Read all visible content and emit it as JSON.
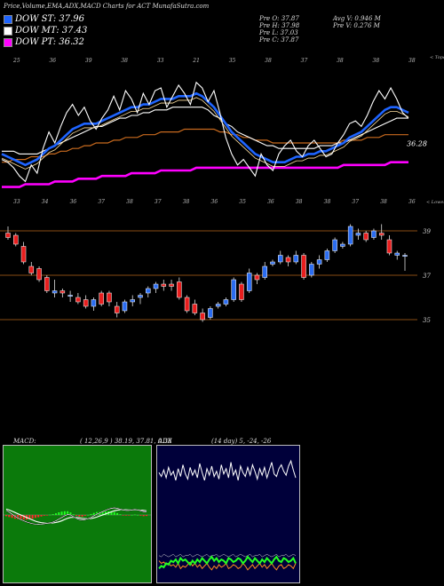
{
  "header": {
    "title": "Price,Volume,EMA,ADX,MACD Charts for ACT MunafaSutra.com"
  },
  "legend": [
    {
      "label": "DOW ST: 37.96",
      "color": "#1e64ff"
    },
    {
      "label": "DOW MT: 37.43",
      "color": "#ffffff"
    },
    {
      "label": "DOW PT: 36.32",
      "color": "#ff00ff"
    }
  ],
  "stats": {
    "open": "Pre  O: 37.87",
    "high": "Pre  H: 37.98",
    "low": "Pre  L: 37.03",
    "close": "Pre  C: 37.87",
    "avg_vol": "Avg V: 0.946  M",
    "pre_vol": "Pre  V: 0.276  M"
  },
  "colors": {
    "up": "#2b6cf0",
    "down": "#e81e1e",
    "ema_st": "#1e64ff",
    "ema_pt": "#ff00ff",
    "price_line": "#ffffff",
    "sr_line": "#b5651d"
  },
  "chart_data": [
    {
      "type": "line",
      "name": "ema-panel",
      "top_tick_labels": [
        "25",
        "36",
        "39",
        "38",
        "33",
        "21",
        "35",
        "38",
        "37",
        "38",
        "38",
        "38"
      ],
      "bottom_tick_labels": [
        "33",
        "34",
        "36",
        "37",
        "38",
        "37",
        "38",
        "36",
        "35",
        "36",
        "38",
        "38",
        "37",
        "38",
        "36"
      ],
      "corner_label_top": "< Topo",
      "corner_label_bottom": "< Lowes",
      "last_value_label": "36.28",
      "price": [
        36.4,
        36.3,
        36.1,
        35.8,
        35.6,
        36.2,
        35.9,
        36.8,
        37.4,
        37.0,
        37.6,
        38.1,
        38.4,
        38.0,
        38.3,
        37.8,
        37.5,
        37.9,
        38.2,
        38.7,
        38.2,
        38.9,
        38.6,
        38.1,
        38.8,
        38.4,
        38.9,
        39.0,
        38.3,
        38.7,
        39.1,
        38.8,
        38.4,
        39.2,
        39.0,
        38.5,
        38.9,
        38.1,
        37.2,
        36.6,
        36.2,
        36.4,
        36.1,
        35.8,
        36.6,
        36.2,
        36.0,
        36.6,
        36.9,
        37.1,
        36.7,
        36.5,
        36.9,
        37.1,
        36.8,
        36.5,
        36.6,
        37.0,
        37.3,
        37.7,
        37.8,
        37.6,
        38.0,
        38.5,
        38.9,
        38.6,
        39.0,
        38.6,
        38.1,
        37.9
      ],
      "ema_st": [
        36.6,
        36.5,
        36.4,
        36.3,
        36.2,
        36.3,
        36.4,
        36.6,
        36.8,
        36.9,
        37.1,
        37.3,
        37.5,
        37.6,
        37.7,
        37.7,
        37.7,
        37.8,
        37.9,
        38.0,
        38.1,
        38.2,
        38.3,
        38.3,
        38.4,
        38.4,
        38.5,
        38.6,
        38.6,
        38.6,
        38.7,
        38.7,
        38.7,
        38.8,
        38.7,
        38.5,
        38.3,
        38.0,
        37.7,
        37.4,
        37.2,
        37.0,
        36.8,
        36.6,
        36.5,
        36.4,
        36.3,
        36.3,
        36.3,
        36.4,
        36.5,
        36.5,
        36.6,
        36.6,
        36.7,
        36.7,
        36.8,
        36.9,
        37.0,
        37.2,
        37.3,
        37.4,
        37.6,
        37.8,
        38.0,
        38.2,
        38.3,
        38.3,
        38.2,
        38.1
      ],
      "ema_mt": [
        36.7,
        36.7,
        36.7,
        36.6,
        36.6,
        36.6,
        36.6,
        36.7,
        36.8,
        36.9,
        37.0,
        37.1,
        37.2,
        37.3,
        37.4,
        37.5,
        37.6,
        37.6,
        37.7,
        37.8,
        37.9,
        37.9,
        38.0,
        38.0,
        38.1,
        38.1,
        38.2,
        38.2,
        38.2,
        38.3,
        38.3,
        38.3,
        38.3,
        38.3,
        38.3,
        38.2,
        38.0,
        37.9,
        37.7,
        37.6,
        37.4,
        37.3,
        37.2,
        37.1,
        37.0,
        36.9,
        36.9,
        36.8,
        36.8,
        36.8,
        36.8,
        36.8,
        36.8,
        36.8,
        36.9,
        36.9,
        36.9,
        37.0,
        37.0,
        37.1,
        37.2,
        37.3,
        37.4,
        37.5,
        37.6,
        37.7,
        37.8,
        37.9,
        37.9,
        37.9
      ],
      "ema_lt": [
        36.3,
        36.3,
        36.4,
        36.4,
        36.4,
        36.5,
        36.5,
        36.5,
        36.6,
        36.6,
        36.7,
        36.7,
        36.8,
        36.8,
        36.9,
        36.9,
        37.0,
        37.0,
        37.0,
        37.1,
        37.1,
        37.2,
        37.2,
        37.2,
        37.3,
        37.3,
        37.3,
        37.4,
        37.4,
        37.4,
        37.4,
        37.5,
        37.5,
        37.5,
        37.5,
        37.5,
        37.5,
        37.4,
        37.4,
        37.3,
        37.3,
        37.2,
        37.2,
        37.1,
        37.1,
        37.1,
        37.0,
        37.0,
        37.0,
        37.0,
        37.0,
        37.0,
        37.0,
        37.0,
        37.0,
        37.0,
        37.0,
        37.0,
        37.1,
        37.1,
        37.1,
        37.1,
        37.2,
        37.2,
        37.2,
        37.3,
        37.3,
        37.3,
        37.3,
        37.3
      ],
      "ema_pt": [
        35.4,
        35.4,
        35.4,
        35.4,
        35.5,
        35.5,
        35.5,
        35.5,
        35.5,
        35.6,
        35.6,
        35.6,
        35.6,
        35.7,
        35.7,
        35.7,
        35.7,
        35.8,
        35.8,
        35.8,
        35.8,
        35.8,
        35.9,
        35.9,
        35.9,
        35.9,
        35.9,
        36.0,
        36.0,
        36.0,
        36.0,
        36.0,
        36.0,
        36.1,
        36.1,
        36.1,
        36.1,
        36.1,
        36.1,
        36.1,
        36.1,
        36.1,
        36.1,
        36.1,
        36.1,
        36.1,
        36.1,
        36.1,
        36.1,
        36.1,
        36.1,
        36.1,
        36.1,
        36.1,
        36.1,
        36.1,
        36.1,
        36.1,
        36.2,
        36.2,
        36.2,
        36.2,
        36.2,
        36.2,
        36.2,
        36.2,
        36.3,
        36.3,
        36.3,
        36.3
      ],
      "ylim": [
        35,
        40
      ]
    },
    {
      "type": "candlestick",
      "name": "price-panel",
      "y_tick_labels": [
        "39",
        "37",
        "35"
      ],
      "support_resistance_levels": [
        39,
        37,
        35
      ],
      "candles": [
        {
          "o": 38.9,
          "h": 39.2,
          "l": 38.6,
          "c": 38.7
        },
        {
          "o": 38.8,
          "h": 38.9,
          "l": 38.3,
          "c": 38.4
        },
        {
          "o": 38.3,
          "h": 38.5,
          "l": 37.5,
          "c": 37.6
        },
        {
          "o": 37.4,
          "h": 37.6,
          "l": 37.0,
          "c": 37.1
        },
        {
          "o": 37.3,
          "h": 37.4,
          "l": 36.7,
          "c": 36.8
        },
        {
          "o": 36.9,
          "h": 37.0,
          "l": 36.2,
          "c": 36.3
        },
        {
          "o": 36.2,
          "h": 36.8,
          "l": 36.0,
          "c": 36.3
        },
        {
          "o": 36.3,
          "h": 36.4,
          "l": 36.0,
          "c": 36.2
        },
        {
          "o": 36.1,
          "h": 36.3,
          "l": 35.8,
          "c": 36.1
        },
        {
          "o": 36.0,
          "h": 36.2,
          "l": 35.7,
          "c": 35.8
        },
        {
          "o": 35.9,
          "h": 36.1,
          "l": 35.5,
          "c": 35.6
        },
        {
          "o": 35.6,
          "h": 36.0,
          "l": 35.4,
          "c": 35.9
        },
        {
          "o": 36.2,
          "h": 36.3,
          "l": 35.6,
          "c": 35.7
        },
        {
          "o": 36.2,
          "h": 36.3,
          "l": 35.6,
          "c": 35.8
        },
        {
          "o": 35.6,
          "h": 35.8,
          "l": 35.1,
          "c": 35.3
        },
        {
          "o": 35.4,
          "h": 35.9,
          "l": 35.3,
          "c": 35.8
        },
        {
          "o": 35.8,
          "h": 36.1,
          "l": 35.6,
          "c": 35.9
        },
        {
          "o": 36.0,
          "h": 36.2,
          "l": 35.7,
          "c": 36.1
        },
        {
          "o": 36.2,
          "h": 36.5,
          "l": 36.0,
          "c": 36.4
        },
        {
          "o": 36.4,
          "h": 36.7,
          "l": 36.2,
          "c": 36.6
        },
        {
          "o": 36.6,
          "h": 36.8,
          "l": 36.3,
          "c": 36.5
        },
        {
          "o": 36.6,
          "h": 36.8,
          "l": 36.3,
          "c": 36.5
        },
        {
          "o": 36.7,
          "h": 36.9,
          "l": 35.9,
          "c": 36.0
        },
        {
          "o": 36.0,
          "h": 36.1,
          "l": 35.3,
          "c": 35.4
        },
        {
          "o": 35.7,
          "h": 35.9,
          "l": 35.2,
          "c": 35.3
        },
        {
          "o": 35.3,
          "h": 35.5,
          "l": 34.9,
          "c": 35.0
        },
        {
          "o": 35.1,
          "h": 35.6,
          "l": 35.0,
          "c": 35.5
        },
        {
          "o": 35.6,
          "h": 35.8,
          "l": 35.5,
          "c": 35.7
        },
        {
          "o": 35.7,
          "h": 36.0,
          "l": 35.6,
          "c": 35.9
        },
        {
          "o": 35.9,
          "h": 36.9,
          "l": 35.8,
          "c": 36.8
        },
        {
          "o": 36.6,
          "h": 36.7,
          "l": 35.8,
          "c": 35.9
        },
        {
          "o": 36.3,
          "h": 37.3,
          "l": 36.2,
          "c": 37.1
        },
        {
          "o": 37.0,
          "h": 37.1,
          "l": 36.6,
          "c": 36.8
        },
        {
          "o": 36.9,
          "h": 37.6,
          "l": 36.8,
          "c": 37.4
        },
        {
          "o": 37.5,
          "h": 37.7,
          "l": 37.4,
          "c": 37.6
        },
        {
          "o": 37.6,
          "h": 38.1,
          "l": 37.5,
          "c": 37.9
        },
        {
          "o": 37.8,
          "h": 37.9,
          "l": 37.4,
          "c": 37.6
        },
        {
          "o": 37.6,
          "h": 38.1,
          "l": 37.5,
          "c": 37.9
        },
        {
          "o": 37.9,
          "h": 38.0,
          "l": 36.8,
          "c": 36.9
        },
        {
          "o": 37.0,
          "h": 37.6,
          "l": 36.9,
          "c": 37.5
        },
        {
          "o": 37.5,
          "h": 37.9,
          "l": 37.3,
          "c": 37.7
        },
        {
          "o": 37.7,
          "h": 38.2,
          "l": 37.6,
          "c": 38.1
        },
        {
          "o": 38.1,
          "h": 38.7,
          "l": 38.0,
          "c": 38.6
        },
        {
          "o": 38.3,
          "h": 38.5,
          "l": 38.2,
          "c": 38.4
        },
        {
          "o": 38.4,
          "h": 39.3,
          "l": 38.3,
          "c": 39.2
        },
        {
          "o": 38.8,
          "h": 39.1,
          "l": 38.6,
          "c": 38.9
        },
        {
          "o": 38.9,
          "h": 39.0,
          "l": 38.5,
          "c": 38.6
        },
        {
          "o": 38.7,
          "h": 39.1,
          "l": 38.6,
          "c": 39.0
        },
        {
          "o": 38.9,
          "h": 39.3,
          "l": 38.6,
          "c": 38.8
        },
        {
          "o": 38.6,
          "h": 38.8,
          "l": 37.9,
          "c": 38.0
        },
        {
          "o": 37.9,
          "h": 38.1,
          "l": 37.7,
          "c": 38.0
        },
        {
          "o": 37.9,
          "h": 38.0,
          "l": 37.2,
          "c": 37.9
        }
      ],
      "ylim": [
        34.6,
        39.8
      ]
    },
    {
      "type": "line",
      "name": "macd-panel",
      "title_left": "MACD:",
      "title_right": "( 12,26,9 ) 38.19, 37.81, 0.38",
      "macd": [
        0.55,
        0.35,
        0.1,
        -0.15,
        -0.35,
        -0.55,
        -0.7,
        -0.85,
        -0.95,
        -1.05,
        -1.1,
        -1.12,
        -1.1,
        -1.05,
        -1.0,
        -0.95,
        -0.85,
        -0.7,
        -0.5,
        -0.3,
        -0.1,
        0.05,
        0.0,
        -0.2,
        -0.4,
        -0.55,
        -0.6,
        -0.55,
        -0.45,
        -0.3,
        -0.1,
        0.1,
        0.25,
        0.4,
        0.55,
        0.7,
        0.8,
        0.85,
        0.8,
        0.7,
        0.6,
        0.55,
        0.55,
        0.6,
        0.65,
        0.6,
        0.5,
        0.4,
        0.38
      ],
      "signal": [
        0.7,
        0.6,
        0.45,
        0.3,
        0.15,
        0.0,
        -0.15,
        -0.3,
        -0.45,
        -0.6,
        -0.75,
        -0.85,
        -0.92,
        -0.96,
        -0.98,
        -0.98,
        -0.95,
        -0.9,
        -0.82,
        -0.7,
        -0.55,
        -0.4,
        -0.3,
        -0.28,
        -0.3,
        -0.35,
        -0.4,
        -0.45,
        -0.45,
        -0.42,
        -0.35,
        -0.25,
        -0.12,
        0.0,
        0.12,
        0.25,
        0.38,
        0.5,
        0.58,
        0.62,
        0.63,
        0.62,
        0.6,
        0.6,
        0.6,
        0.6,
        0.58,
        0.55,
        0.5
      ],
      "ylim": [
        -1.6,
        1.6
      ]
    },
    {
      "type": "line",
      "name": "adx-panel",
      "title_left": "ADX",
      "title_right": "(14  day) 5,  -24,  -26",
      "adx_high": [
        82,
        79,
        84,
        78,
        86,
        80,
        83,
        76,
        85,
        79,
        88,
        81,
        77,
        86,
        80,
        84,
        78,
        89,
        82,
        76,
        85,
        80,
        87,
        79,
        83,
        77,
        88,
        81,
        85,
        78,
        90,
        80,
        84,
        76,
        87,
        82,
        79,
        86,
        80,
        88,
        83,
        77,
        85,
        80,
        86,
        78,
        84,
        90,
        81,
        79,
        85,
        88,
        83,
        80,
        87,
        91,
        84,
        78
      ],
      "adx_mid": [
        18,
        17,
        19,
        18,
        17,
        18,
        19,
        17,
        18,
        19,
        17,
        18,
        18,
        19,
        17,
        18,
        19,
        18,
        17,
        18,
        19,
        17,
        18,
        18,
        19,
        17,
        18,
        19,
        18,
        17,
        18,
        19,
        17,
        18,
        19,
        18,
        17,
        18,
        19,
        17,
        18,
        18,
        19,
        17,
        18,
        19,
        18,
        17,
        18,
        19,
        17,
        18,
        18,
        19,
        17,
        18,
        19,
        18
      ],
      "plus_di": [
        8,
        10,
        9,
        12,
        11,
        14,
        13,
        15,
        12,
        16,
        14,
        15,
        13,
        11,
        14,
        12,
        15,
        13,
        16,
        14,
        12,
        15,
        17,
        14,
        16,
        13,
        15,
        14,
        12,
        16,
        15,
        13,
        14,
        16,
        15,
        12,
        14,
        17,
        15,
        13,
        16,
        14,
        12,
        15,
        13,
        16,
        14,
        12,
        15,
        17,
        14,
        13,
        16,
        15,
        13,
        14,
        16,
        12
      ],
      "minus_di": [
        14,
        12,
        13,
        11,
        12,
        10,
        11,
        9,
        12,
        8,
        10,
        9,
        11,
        13,
        10,
        12,
        9,
        11,
        8,
        10,
        12,
        9,
        7,
        10,
        8,
        11,
        9,
        10,
        12,
        8,
        9,
        11,
        10,
        8,
        9,
        12,
        10,
        7,
        9,
        11,
        8,
        10,
        12,
        9,
        11,
        8,
        10,
        12,
        9,
        7,
        10,
        11,
        8,
        9,
        11,
        10,
        8,
        12
      ],
      "ylim": [
        0,
        100
      ]
    }
  ]
}
